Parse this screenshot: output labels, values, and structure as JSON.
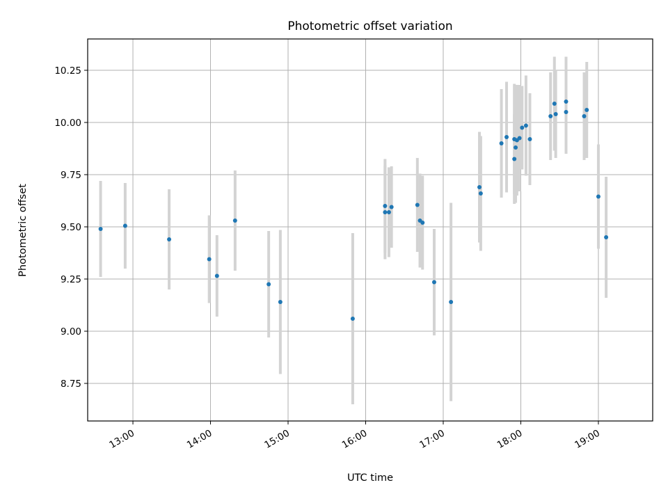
{
  "chart_data": {
    "type": "scatter",
    "title": "Photometric offset variation",
    "xlabel": "UTC time",
    "ylabel": "Photometric offset",
    "x_unit": "UTC time of day",
    "xlim": [
      "12:25",
      "19:42"
    ],
    "ylim": [
      8.57,
      10.4
    ],
    "grid": true,
    "x_ticks": [
      "13:00",
      "14:00",
      "15:00",
      "16:00",
      "17:00",
      "18:00",
      "19:00"
    ],
    "y_ticks": [
      "8.75",
      "9.00",
      "9.25",
      "9.50",
      "9.75",
      "10.00",
      "10.25"
    ],
    "colors": {
      "point": "#1f77b4",
      "errorbar": "#d3d3d3",
      "grid": "#b0b0b0"
    },
    "points": [
      {
        "x": "12:35",
        "y": 9.49,
        "err": 0.23
      },
      {
        "x": "12:54",
        "y": 9.505,
        "err": 0.205
      },
      {
        "x": "13:28",
        "y": 9.44,
        "err": 0.24
      },
      {
        "x": "13:59",
        "y": 9.345,
        "err": 0.21
      },
      {
        "x": "14:05",
        "y": 9.265,
        "err": 0.195
      },
      {
        "x": "14:19",
        "y": 9.53,
        "err": 0.24
      },
      {
        "x": "14:45",
        "y": 9.225,
        "err": 0.255
      },
      {
        "x": "14:54",
        "y": 9.14,
        "err": 0.345
      },
      {
        "x": "15:50",
        "y": 9.06,
        "err": 0.41
      },
      {
        "x": "16:15",
        "y": 9.6,
        "err": 0.225
      },
      {
        "x": "16:15",
        "y": 9.57,
        "err": 0.225
      },
      {
        "x": "16:18",
        "y": 9.57,
        "err": 0.215
      },
      {
        "x": "16:20",
        "y": 9.595,
        "err": 0.195
      },
      {
        "x": "16:40",
        "y": 9.605,
        "err": 0.225
      },
      {
        "x": "16:42",
        "y": 9.53,
        "err": 0.225
      },
      {
        "x": "16:44",
        "y": 9.52,
        "err": 0.225
      },
      {
        "x": "16:53",
        "y": 9.235,
        "err": 0.255
      },
      {
        "x": "17:06",
        "y": 9.14,
        "err": 0.475
      },
      {
        "x": "17:28",
        "y": 9.69,
        "err": 0.265
      },
      {
        "x": "17:29",
        "y": 9.66,
        "err": 0.275
      },
      {
        "x": "17:45",
        "y": 9.9,
        "err": 0.26
      },
      {
        "x": "17:49",
        "y": 9.93,
        "err": 0.265
      },
      {
        "x": "17:55",
        "y": 9.92,
        "err": 0.265
      },
      {
        "x": "17:55",
        "y": 9.825,
        "err": 0.215
      },
      {
        "x": "17:56",
        "y": 9.88,
        "err": 0.265
      },
      {
        "x": "17:57",
        "y": 9.915,
        "err": 0.265
      },
      {
        "x": "17:59",
        "y": 9.925,
        "err": 0.255
      },
      {
        "x": "18:01",
        "y": 9.975,
        "err": 0.2
      },
      {
        "x": "18:04",
        "y": 9.985,
        "err": 0.24
      },
      {
        "x": "18:07",
        "y": 9.92,
        "err": 0.22
      },
      {
        "x": "18:23",
        "y": 10.03,
        "err": 0.21
      },
      {
        "x": "18:26",
        "y": 10.09,
        "err": 0.225
      },
      {
        "x": "18:27",
        "y": 10.04,
        "err": 0.21
      },
      {
        "x": "18:35",
        "y": 10.1,
        "err": 0.215
      },
      {
        "x": "18:35",
        "y": 10.05,
        "err": 0.2
      },
      {
        "x": "18:49",
        "y": 10.03,
        "err": 0.21
      },
      {
        "x": "18:51",
        "y": 10.06,
        "err": 0.23
      },
      {
        "x": "19:00",
        "y": 9.645,
        "err": 0.25
      },
      {
        "x": "19:06",
        "y": 9.45,
        "err": 0.29
      }
    ]
  }
}
